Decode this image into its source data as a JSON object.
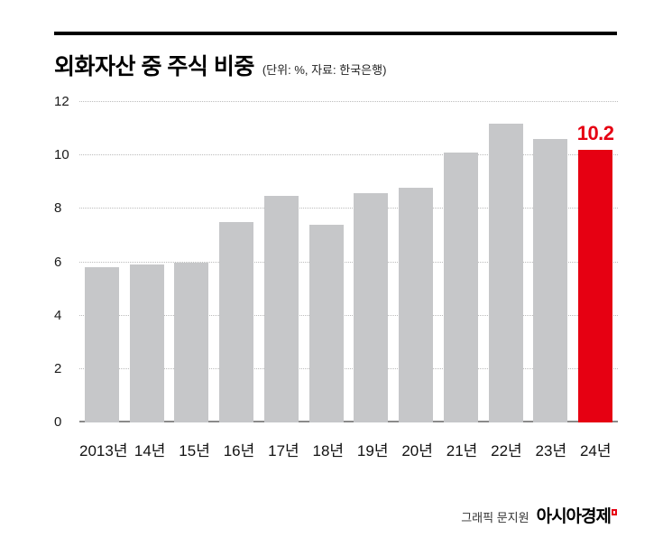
{
  "header": {
    "title": "외화자산 중 주식 비중",
    "subtitle": "(단위: %, 자료: 한국은행)"
  },
  "chart_data": {
    "type": "bar",
    "title": "외화자산 중 주식 비중",
    "unit_note": "(단위: %, 자료: 한국은행)",
    "categories": [
      "2013년",
      "14년",
      "15년",
      "16년",
      "17년",
      "18년",
      "19년",
      "20년",
      "21년",
      "22년",
      "23년",
      "24년"
    ],
    "values": [
      5.8,
      5.9,
      6.0,
      7.5,
      8.5,
      7.4,
      8.6,
      8.8,
      10.1,
      11.2,
      10.6,
      10.2
    ],
    "ylim": [
      0,
      12
    ],
    "yticks": [
      0,
      2,
      4,
      6,
      8,
      10,
      12
    ],
    "grid": "horizontal-dotted",
    "legend": "none",
    "bar_color": "#c6c7c9",
    "highlight": {
      "index": 11,
      "color": "#e60012",
      "label": "10.2"
    }
  },
  "footer": {
    "credit": "그래픽 문지원",
    "brand": "아시아경제"
  }
}
